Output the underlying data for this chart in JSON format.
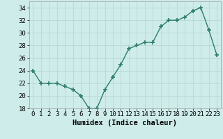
{
  "x": [
    0,
    1,
    2,
    3,
    4,
    5,
    6,
    7,
    8,
    9,
    10,
    11,
    12,
    13,
    14,
    15,
    16,
    17,
    18,
    19,
    20,
    21,
    22,
    23
  ],
  "y": [
    24,
    22,
    22,
    22,
    21.5,
    21,
    20,
    18,
    18,
    21,
    23,
    25,
    27.5,
    28,
    28.5,
    28.5,
    31,
    32,
    32,
    32.5,
    33.5,
    34,
    30.5,
    26.5
  ],
  "line_color": "#2e7d6e",
  "marker": "+",
  "marker_size": 4,
  "bg_color": "#ceecea",
  "grid_color": "#b8d8d4",
  "xlabel": "Humidex (Indice chaleur)",
  "xlim": [
    -0.5,
    23.5
  ],
  "ylim": [
    18,
    35
  ],
  "yticks": [
    18,
    20,
    22,
    24,
    26,
    28,
    30,
    32,
    34
  ],
  "xticks": [
    0,
    1,
    2,
    3,
    4,
    5,
    6,
    7,
    8,
    9,
    10,
    11,
    12,
    13,
    14,
    15,
    16,
    17,
    18,
    19,
    20,
    21,
    22,
    23
  ],
  "xlabel_fontsize": 7.5,
  "tick_fontsize": 6.5,
  "linewidth": 1.0,
  "marker_linewidth": 1.2
}
